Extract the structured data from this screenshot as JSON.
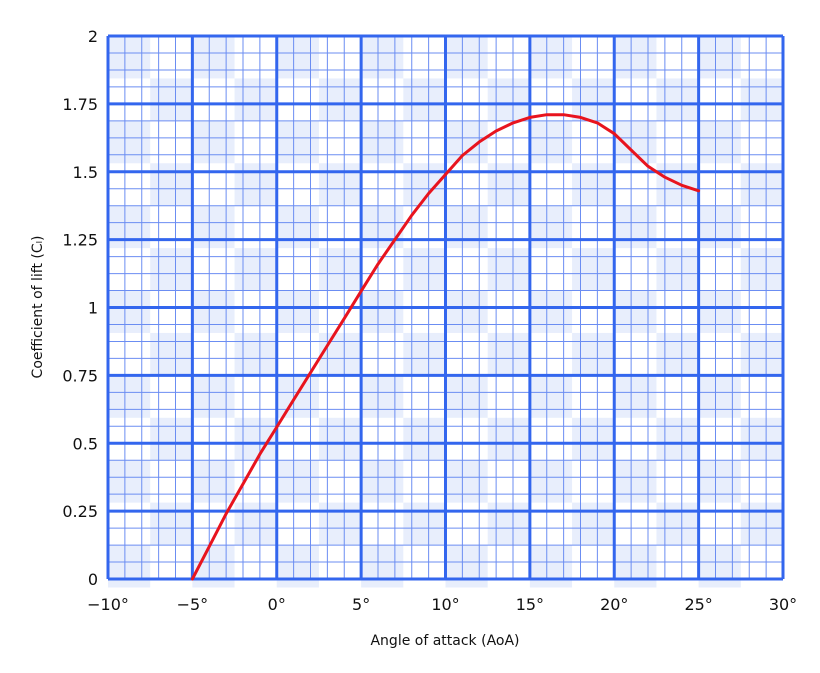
{
  "chart_data": {
    "type": "line",
    "xlabel": "Angle of attack (AoA)",
    "ylabel": "Coefficient of lift (Cₗ)",
    "xlim": [
      -10,
      30
    ],
    "ylim": [
      0,
      2
    ],
    "grid": "graph-paper",
    "x_ticks": [
      {
        "value": -10,
        "label": "−10°"
      },
      {
        "value": -5,
        "label": "−5°"
      },
      {
        "value": 0,
        "label": "0°"
      },
      {
        "value": 5,
        "label": "5°"
      },
      {
        "value": 10,
        "label": "10°"
      },
      {
        "value": 15,
        "label": "15°"
      },
      {
        "value": 20,
        "label": "20°"
      },
      {
        "value": 25,
        "label": "25°"
      },
      {
        "value": 30,
        "label": "30°"
      }
    ],
    "y_ticks": [
      {
        "value": 0,
        "label": "0"
      },
      {
        "value": 0.25,
        "label": "0.25"
      },
      {
        "value": 0.5,
        "label": "0.5"
      },
      {
        "value": 0.75,
        "label": "0.75"
      },
      {
        "value": 1,
        "label": "1"
      },
      {
        "value": 1.25,
        "label": "1.25"
      },
      {
        "value": 1.5,
        "label": "1.5"
      },
      {
        "value": 1.75,
        "label": "1.75"
      },
      {
        "value": 2,
        "label": "2"
      }
    ],
    "series": [
      {
        "color": "#e8141e",
        "points": [
          [
            -5,
            0
          ],
          [
            -4,
            0.12
          ],
          [
            -3,
            0.24
          ],
          [
            -2,
            0.35
          ],
          [
            -1,
            0.46
          ],
          [
            0,
            0.56
          ],
          [
            1,
            0.66
          ],
          [
            2,
            0.76
          ],
          [
            3,
            0.86
          ],
          [
            4,
            0.96
          ],
          [
            5,
            1.06
          ],
          [
            6,
            1.16
          ],
          [
            7,
            1.25
          ],
          [
            8,
            1.34
          ],
          [
            9,
            1.42
          ],
          [
            10,
            1.49
          ],
          [
            11,
            1.56
          ],
          [
            12,
            1.61
          ],
          [
            13,
            1.65
          ],
          [
            14,
            1.68
          ],
          [
            15,
            1.7
          ],
          [
            16,
            1.71
          ],
          [
            17,
            1.71
          ],
          [
            18,
            1.7
          ],
          [
            19,
            1.68
          ],
          [
            20,
            1.64
          ],
          [
            21,
            1.58
          ],
          [
            22,
            1.52
          ],
          [
            23,
            1.48
          ],
          [
            24,
            1.45
          ],
          [
            25,
            1.43
          ]
        ]
      }
    ]
  },
  "colors": {
    "grid_major": "#3366ee",
    "grid_minor": "#6b8df2",
    "grid_fill_a": "#e8eefc",
    "grid_fill_b": "#ffffff"
  }
}
